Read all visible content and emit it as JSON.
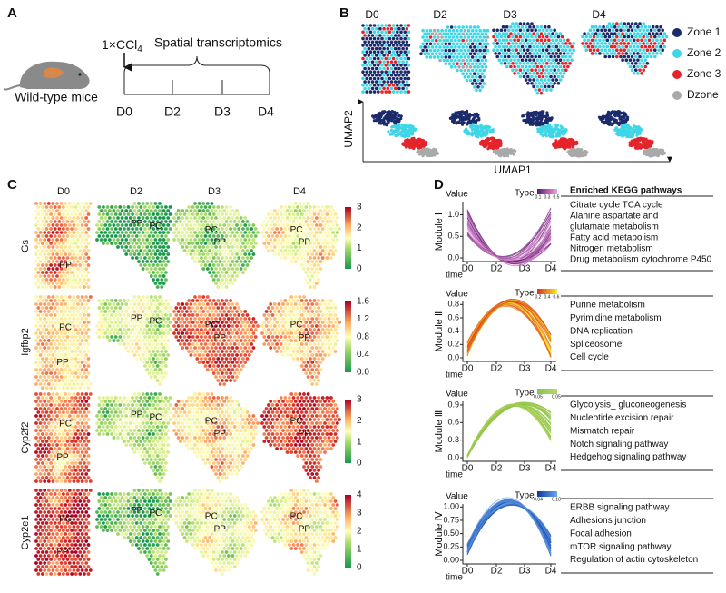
{
  "panel_a": {
    "label": "A",
    "mouse": "Wild-type mice",
    "treatment": {
      "text": "1×CCl",
      "subscript": "4"
    },
    "method": "Spatial transcriptomics",
    "timepoints": [
      "D0",
      "D2",
      "D3",
      "D4"
    ]
  },
  "panel_b": {
    "label": "B",
    "timepoints": [
      "D0",
      "D2",
      "D3",
      "D4"
    ],
    "legend": [
      "Zone 1",
      "Zone 2",
      "Zone 3",
      "Dzone"
    ],
    "colors": [
      "#1b2a6b",
      "#3fd6e6",
      "#e3242b",
      "#a9a9a9"
    ],
    "x_axis": "UMAP1",
    "y_axis": "UMAP2"
  },
  "panel_c": {
    "label": "C",
    "timepoints": [
      "D0",
      "D2",
      "D3",
      "D4"
    ],
    "genes": [
      {
        "name": "Gs",
        "scale": [
          "3",
          "2",
          "1",
          "0"
        ],
        "regions": [
          [
            "PP"
          ],
          [
            "PP",
            "PC"
          ],
          [
            "PC",
            "PP"
          ],
          [
            "PC",
            "PP"
          ]
        ]
      },
      {
        "name": "Igfbp2",
        "scale": [
          "1.6",
          "1.2",
          "0.8",
          "0.4",
          "0.0"
        ],
        "regions": [
          [
            "PC",
            "PP"
          ],
          [
            "PP",
            "PC"
          ],
          [
            "PC",
            "PP"
          ],
          [
            "PC",
            "PP"
          ]
        ]
      },
      {
        "name": "Cyp2f2",
        "scale": [
          "3",
          "2",
          "1",
          "0"
        ],
        "regions": [
          [
            "PC",
            "PP"
          ],
          [
            "PP",
            "PC"
          ],
          [
            "PC",
            "PP"
          ],
          [
            "PC",
            "PP"
          ]
        ]
      },
      {
        "name": "Cyp2e1",
        "scale": [
          "4",
          "3",
          "2",
          "1",
          "0"
        ],
        "regions": [
          [
            "PC",
            "PP"
          ],
          [
            "PP",
            "PC"
          ],
          [
            "PC",
            "PP"
          ],
          [
            "PC",
            "PP"
          ]
        ]
      }
    ]
  },
  "panel_d": {
    "label": "D",
    "value_label": "Value",
    "type_label": "Type",
    "time_label": "time",
    "timepoints": [
      "D0",
      "D2",
      "D3",
      "D4"
    ],
    "kegg_header": "Enriched KEGG pathways",
    "modules": [
      {
        "name": "Module Ⅰ",
        "yticks": [
          "1.0",
          "0.5",
          "0.0"
        ],
        "type_ticks": [
          "0.1",
          "0.3",
          "0.5"
        ],
        "pathways": [
          "Citrate cycle TCA cycle",
          "Alanine aspartate and",
          "glutamate metabolism",
          "Fatty acid metabolism",
          "Nitrogen metabolism",
          "Drug  metabolism cytochrome P450"
        ]
      },
      {
        "name": "Module Ⅱ",
        "yticks": [
          "0.8",
          "0.6",
          "0.4",
          "0.2",
          "0.0"
        ],
        "type_ticks": [
          "0.2",
          "0.4",
          "0.6"
        ],
        "pathways": [
          "Purine metabolism",
          "Pyrimidine metabolism",
          "DNA replication",
          "Spliceosome",
          "Cell cycle"
        ]
      },
      {
        "name": "Module Ⅲ",
        "yticks": [
          "0.9",
          "0.6",
          "0.3",
          "0.0"
        ],
        "type_ticks": [
          "0.05",
          "0.05"
        ],
        "pathways": [
          "Glycolysis_ gluconeogenesis",
          "Nucleotide excision repair",
          "Mismatch repair",
          "Notch signaling pathway",
          "Hedgehog signaling pathway"
        ]
      },
      {
        "name": "Module Ⅳ",
        "yticks": [
          "1.00",
          "0.75",
          "0.50",
          "0.25",
          "0.00"
        ],
        "type_ticks": [
          "0.04",
          "0.18"
        ],
        "pathways": [
          "ERBB signaling pathway",
          "Adhesions junction",
          "Focal adhesion",
          "mTOR signaling pathway",
          "Regulation of actin cytoskeleton"
        ]
      }
    ]
  }
}
